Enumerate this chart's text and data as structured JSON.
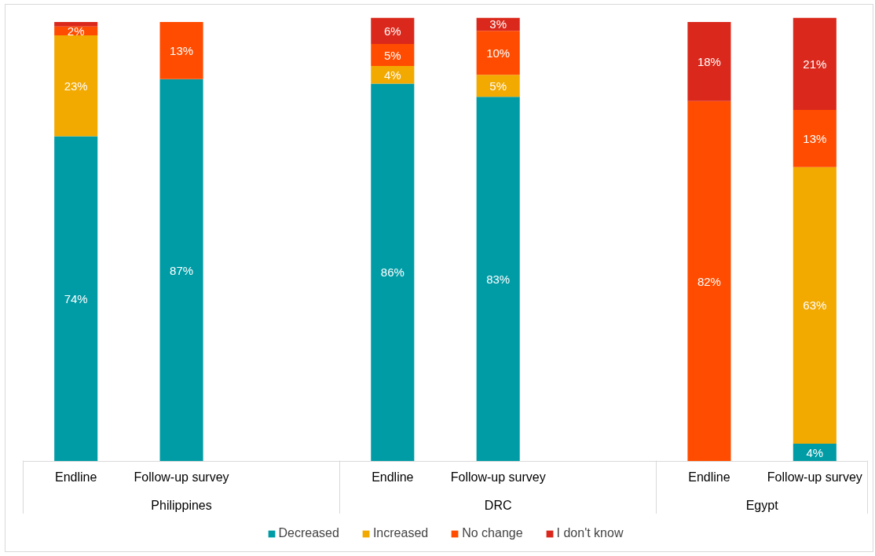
{
  "chart_data": {
    "type": "bar",
    "stacked": true,
    "categories": [
      "Endline",
      "Follow-up survey",
      null,
      "Endline",
      "Follow-up survey",
      null,
      "Endline",
      "Follow-up survey"
    ],
    "annotations": [
      "Philippines",
      "DRC",
      "Egypt"
    ],
    "series": [
      {
        "name": "Decreased",
        "color": "#009ca6",
        "values": [
          74,
          87,
          null,
          86,
          83,
          null,
          null,
          4
        ],
        "value_labels": [
          "74%",
          "87%",
          null,
          "86%",
          "83%",
          null,
          null,
          "4%"
        ]
      },
      {
        "name": "Increased",
        "color": "#f2a900",
        "values": [
          23,
          null,
          null,
          4,
          5,
          null,
          null,
          63
        ],
        "value_labels": [
          "23%",
          null,
          null,
          "4%",
          "5%",
          null,
          null,
          "63%"
        ]
      },
      {
        "name": "No change",
        "color": "#ff4c00",
        "values": [
          2,
          13,
          null,
          5,
          10,
          null,
          82,
          13
        ],
        "value_labels": [
          "2%",
          "13%",
          null,
          "5%",
          "10%",
          null,
          "82%",
          "13%"
        ]
      },
      {
        "name": "I don't know",
        "color": "#da291c",
        "values": [
          1,
          null,
          null,
          6,
          3,
          null,
          18,
          21
        ],
        "value_labels": [
          null,
          null,
          null,
          "6%",
          "3%",
          null,
          "18%",
          "21%"
        ]
      }
    ],
    "ylim": [
      0,
      101
    ],
    "tick_labels": "x",
    "legend": "bottom"
  }
}
